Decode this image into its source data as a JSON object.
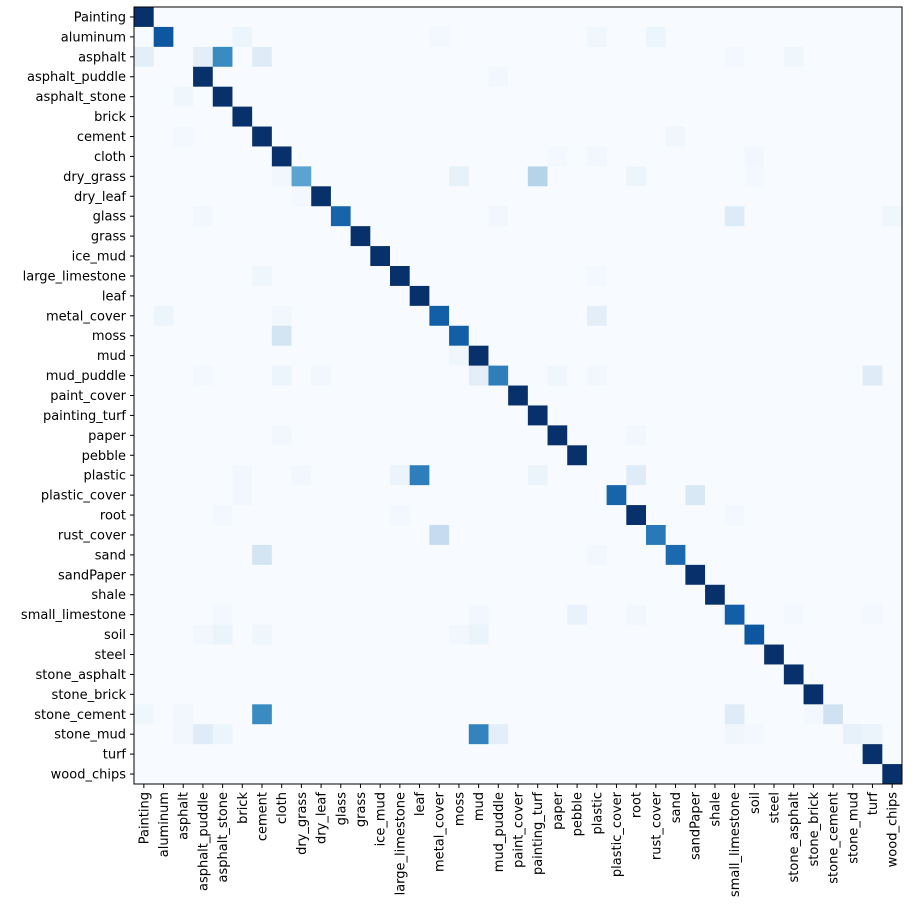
{
  "chart_data": {
    "type": "heatmap",
    "title": "",
    "xlabel": "",
    "ylabel": "",
    "colormap": "Blues",
    "vmin": 0,
    "vmax": 1,
    "grid": false,
    "labels": [
      "Painting",
      "aluminum",
      "asphalt",
      "asphalt_puddle",
      "asphalt_stone",
      "brick",
      "cement",
      "cloth",
      "dry_grass",
      "dry_leaf",
      "glass",
      "grass",
      "ice_mud",
      "large_limestone",
      "leaf",
      "metal_cover",
      "moss",
      "mud",
      "mud_puddle",
      "paint_cover",
      "painting_turf",
      "paper",
      "pebble",
      "plastic",
      "plastic_cover",
      "root",
      "rust_cover",
      "sand",
      "sandPaper",
      "shale",
      "small_limestone",
      "soil",
      "steel",
      "stone_asphalt",
      "stone_brick",
      "stone_cement",
      "stone_mud",
      "turf",
      "wood_chips"
    ],
    "diagonal": [
      1.0,
      0.85,
      0.0,
      1.0,
      1.0,
      1.0,
      1.0,
      1.0,
      0.55,
      1.0,
      0.8,
      1.0,
      1.0,
      1.0,
      1.0,
      0.82,
      0.82,
      1.0,
      0.7,
      1.0,
      1.0,
      1.0,
      1.0,
      0.0,
      0.8,
      1.0,
      0.72,
      0.78,
      1.0,
      1.0,
      0.82,
      0.85,
      1.0,
      1.0,
      1.0,
      0.2,
      0.08,
      1.0,
      1.0
    ],
    "off_diagonal": [
      [
        1,
        5,
        0.05
      ],
      [
        1,
        23,
        0.04
      ],
      [
        1,
        26,
        0.05
      ],
      [
        1,
        15,
        0.02
      ],
      [
        2,
        0,
        0.1
      ],
      [
        2,
        3,
        0.1
      ],
      [
        2,
        4,
        0.65
      ],
      [
        2,
        6,
        0.12
      ],
      [
        2,
        30,
        0.02
      ],
      [
        2,
        33,
        0.04
      ],
      [
        3,
        18,
        0.03
      ],
      [
        4,
        2,
        0.04
      ],
      [
        6,
        2,
        0.02
      ],
      [
        6,
        27,
        0.04
      ],
      [
        7,
        23,
        0.03
      ],
      [
        7,
        31,
        0.03
      ],
      [
        7,
        21,
        0.02
      ],
      [
        8,
        7,
        0.03
      ],
      [
        8,
        16,
        0.08
      ],
      [
        8,
        20,
        0.3
      ],
      [
        8,
        25,
        0.05
      ],
      [
        8,
        31,
        0.02
      ],
      [
        9,
        8,
        0.02
      ],
      [
        10,
        3,
        0.03
      ],
      [
        10,
        18,
        0.03
      ],
      [
        10,
        30,
        0.13
      ],
      [
        10,
        38,
        0.04
      ],
      [
        13,
        6,
        0.04
      ],
      [
        13,
        23,
        0.02
      ],
      [
        15,
        1,
        0.05
      ],
      [
        15,
        7,
        0.03
      ],
      [
        15,
        23,
        0.1
      ],
      [
        16,
        7,
        0.18
      ],
      [
        17,
        16,
        0.04
      ],
      [
        18,
        3,
        0.02
      ],
      [
        18,
        7,
        0.05
      ],
      [
        18,
        9,
        0.03
      ],
      [
        18,
        17,
        0.1
      ],
      [
        18,
        21,
        0.04
      ],
      [
        18,
        23,
        0.03
      ],
      [
        18,
        37,
        0.12
      ],
      [
        21,
        7,
        0.03
      ],
      [
        21,
        25,
        0.03
      ],
      [
        23,
        5,
        0.03
      ],
      [
        23,
        8,
        0.03
      ],
      [
        23,
        13,
        0.06
      ],
      [
        23,
        14,
        0.7
      ],
      [
        23,
        20,
        0.06
      ],
      [
        23,
        25,
        0.12
      ],
      [
        24,
        5,
        0.03
      ],
      [
        24,
        28,
        0.15
      ],
      [
        25,
        4,
        0.02
      ],
      [
        25,
        13,
        0.02
      ],
      [
        25,
        30,
        0.02
      ],
      [
        26,
        15,
        0.25
      ],
      [
        27,
        6,
        0.18
      ],
      [
        27,
        23,
        0.03
      ],
      [
        30,
        4,
        0.02
      ],
      [
        30,
        17,
        0.03
      ],
      [
        30,
        22,
        0.07
      ],
      [
        30,
        25,
        0.03
      ],
      [
        30,
        33,
        0.02
      ],
      [
        30,
        37,
        0.02
      ],
      [
        31,
        3,
        0.03
      ],
      [
        31,
        4,
        0.06
      ],
      [
        31,
        6,
        0.04
      ],
      [
        31,
        16,
        0.03
      ],
      [
        31,
        17,
        0.06
      ],
      [
        35,
        0,
        0.04
      ],
      [
        35,
        2,
        0.03
      ],
      [
        35,
        6,
        0.65
      ],
      [
        35,
        30,
        0.12
      ],
      [
        35,
        34,
        0.02
      ],
      [
        36,
        2,
        0.03
      ],
      [
        36,
        3,
        0.12
      ],
      [
        36,
        4,
        0.05
      ],
      [
        36,
        17,
        0.68
      ],
      [
        36,
        18,
        0.1
      ],
      [
        36,
        30,
        0.04
      ],
      [
        36,
        31,
        0.02
      ],
      [
        36,
        37,
        0.06
      ]
    ]
  }
}
